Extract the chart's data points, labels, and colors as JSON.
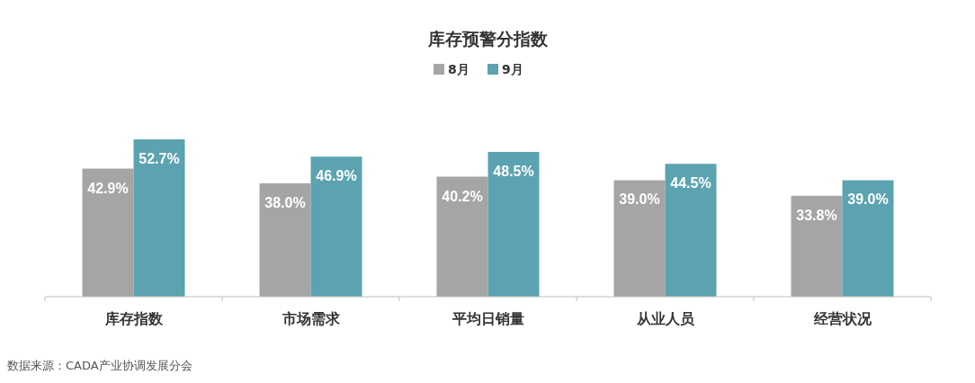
{
  "chart_data": {
    "type": "bar",
    "title": "库存预警分指数",
    "categories": [
      "库存指数",
      "市场需求",
      "平均日销量",
      "从业人员",
      "经营状况"
    ],
    "series": [
      {
        "name": "8月",
        "color": "#a5a5a5",
        "values": [
          42.9,
          38.0,
          40.2,
          39.0,
          33.8
        ],
        "value_labels": [
          "42.9%",
          "38.0%",
          "40.2%",
          "39.0%",
          "33.8%"
        ]
      },
      {
        "name": "9月",
        "color": "#5ba3b0",
        "values": [
          52.7,
          46.9,
          48.5,
          44.5,
          39.0
        ],
        "value_labels": [
          "52.7%",
          "46.9%",
          "48.5%",
          "44.5%",
          "39.0%"
        ]
      }
    ],
    "legend": "top",
    "annotations": [
      "数据来源：CADA产业协调发展分会"
    ]
  }
}
